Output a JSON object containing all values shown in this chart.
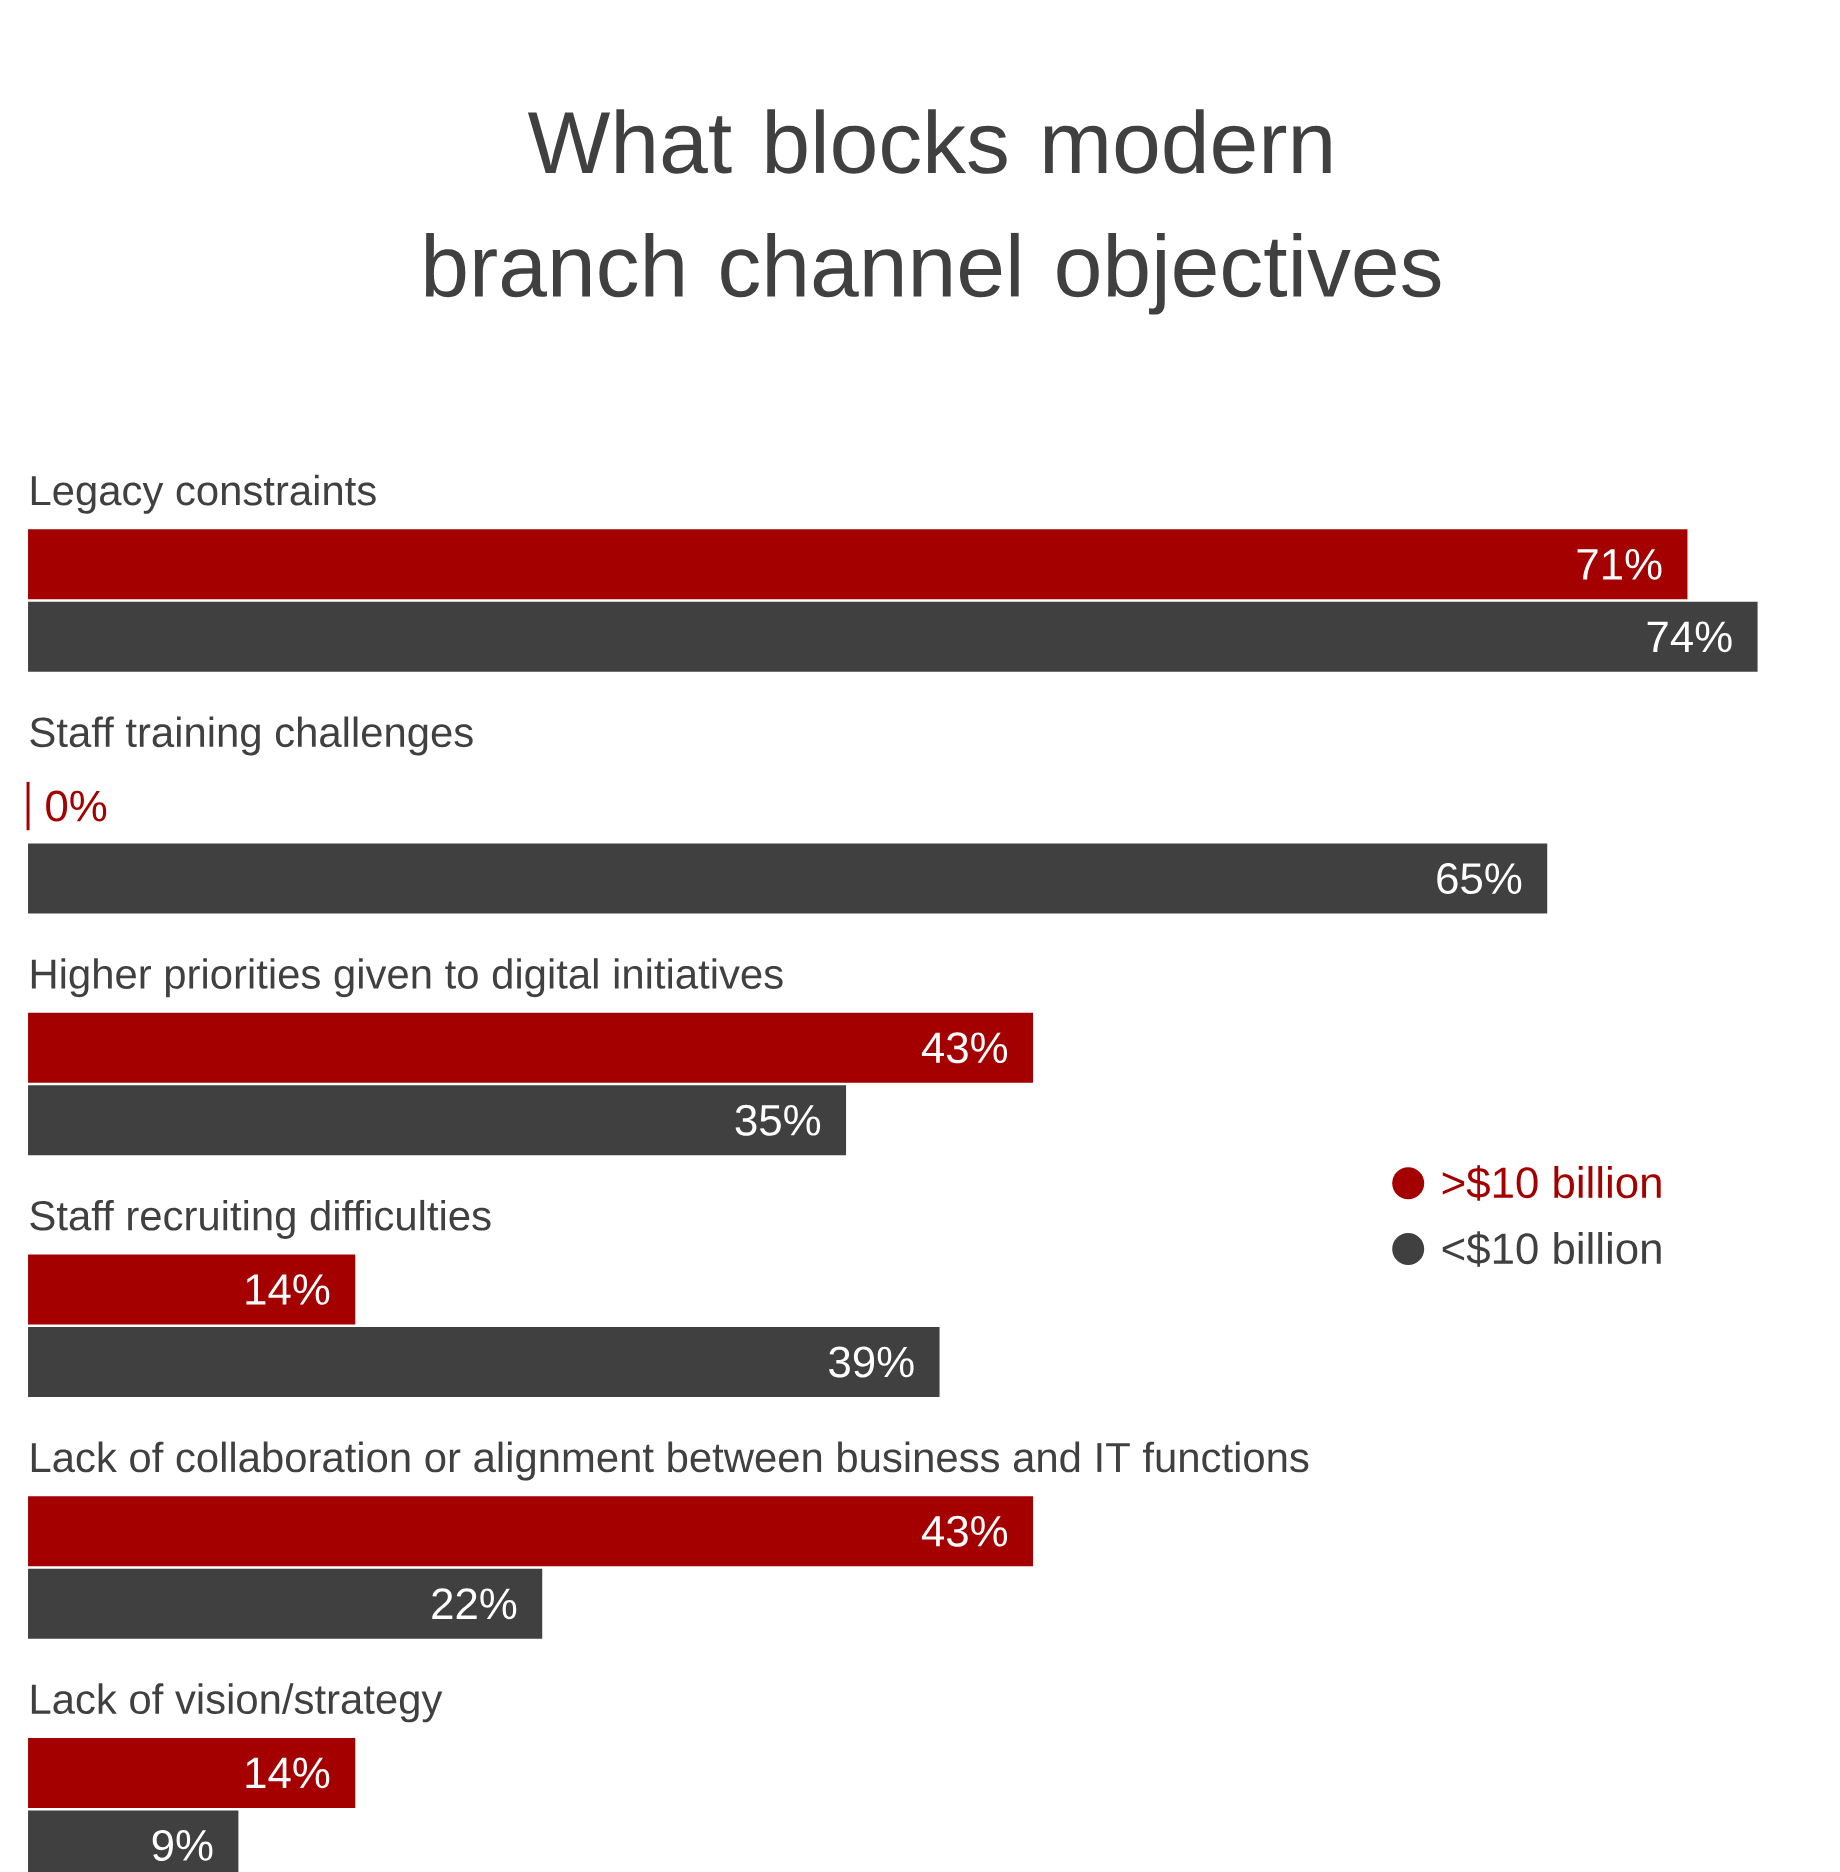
{
  "chart_data": {
    "type": "bar",
    "orientation": "horizontal",
    "title": "What blocks modern branch channel objectives",
    "categories": [
      "Legacy constraints",
      "Staff training challenges",
      "Higher priorities given to digital initiatives",
      "Staff recruiting difficulties",
      "Lack of collaboration or alignment between business and IT functions",
      "Lack of vision/strategy"
    ],
    "series": [
      {
        "name": ">$10 billion",
        "color": "#a50000",
        "values": [
          71,
          0,
          43,
          14,
          43,
          14
        ],
        "value_labels": [
          "71%",
          "0%",
          "43%",
          "14%",
          "43%",
          "14%"
        ]
      },
      {
        "name": "<$10 billion",
        "color": "#404040",
        "values": [
          74,
          65,
          35,
          39,
          22,
          9
        ],
        "value_labels": [
          "74%",
          "65%",
          "35%",
          "39%",
          "22%",
          "9%"
        ]
      }
    ],
    "legend": "right"
  }
}
